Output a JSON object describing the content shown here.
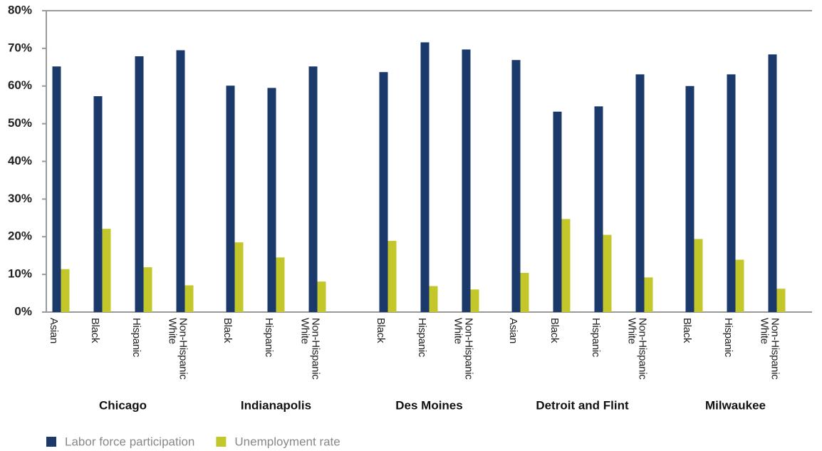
{
  "chart_data": {
    "type": "bar",
    "groups": [
      {
        "name": "Chicago",
        "categories": [
          "Asian",
          "Black",
          "Hispanic",
          "Non-Hispanic White"
        ]
      },
      {
        "name": "Indianapolis",
        "categories": [
          "Black",
          "Hispanic",
          "Non-Hispanic White"
        ]
      },
      {
        "name": "Des Moines",
        "categories": [
          "Black",
          "Hispanic",
          "Non-Hispanic White"
        ]
      },
      {
        "name": "Detroit and Flint",
        "categories": [
          "Asian",
          "Black",
          "Hispanic",
          "Non-Hispanic White"
        ]
      },
      {
        "name": "Milwaukee",
        "categories": [
          "Black",
          "Hispanic",
          "Non-Hispanic White"
        ]
      }
    ],
    "series": [
      {
        "name": "Labor force participation",
        "color": "#1b3a6b",
        "values": [
          65.2,
          57.3,
          67.9,
          69.5,
          60.1,
          59.5,
          65.2,
          63.7,
          71.6,
          69.7,
          66.9,
          53.2,
          54.6,
          63.1,
          60.0,
          63.1,
          68.4
        ]
      },
      {
        "name": "Unemployment rate",
        "color": "#c4c72a",
        "values": [
          11.4,
          22.1,
          11.9,
          7.1,
          18.5,
          14.5,
          8.1,
          18.9,
          6.9,
          6.0,
          10.4,
          24.7,
          20.5,
          9.2,
          19.4,
          13.9,
          6.2
        ]
      }
    ],
    "ylim": [
      0,
      80
    ],
    "yticks": [
      {
        "value": 0,
        "label": "0%"
      },
      {
        "value": 10,
        "label": "10%"
      },
      {
        "value": 20,
        "label": "20%"
      },
      {
        "value": 30,
        "label": "30%"
      },
      {
        "value": 40,
        "label": "40%"
      },
      {
        "value": 50,
        "label": "50%"
      },
      {
        "value": 60,
        "label": "60%"
      },
      {
        "value": 70,
        "label": "70%"
      },
      {
        "value": 80,
        "label": "80%"
      }
    ],
    "grid": false,
    "legend": "bottom"
  }
}
